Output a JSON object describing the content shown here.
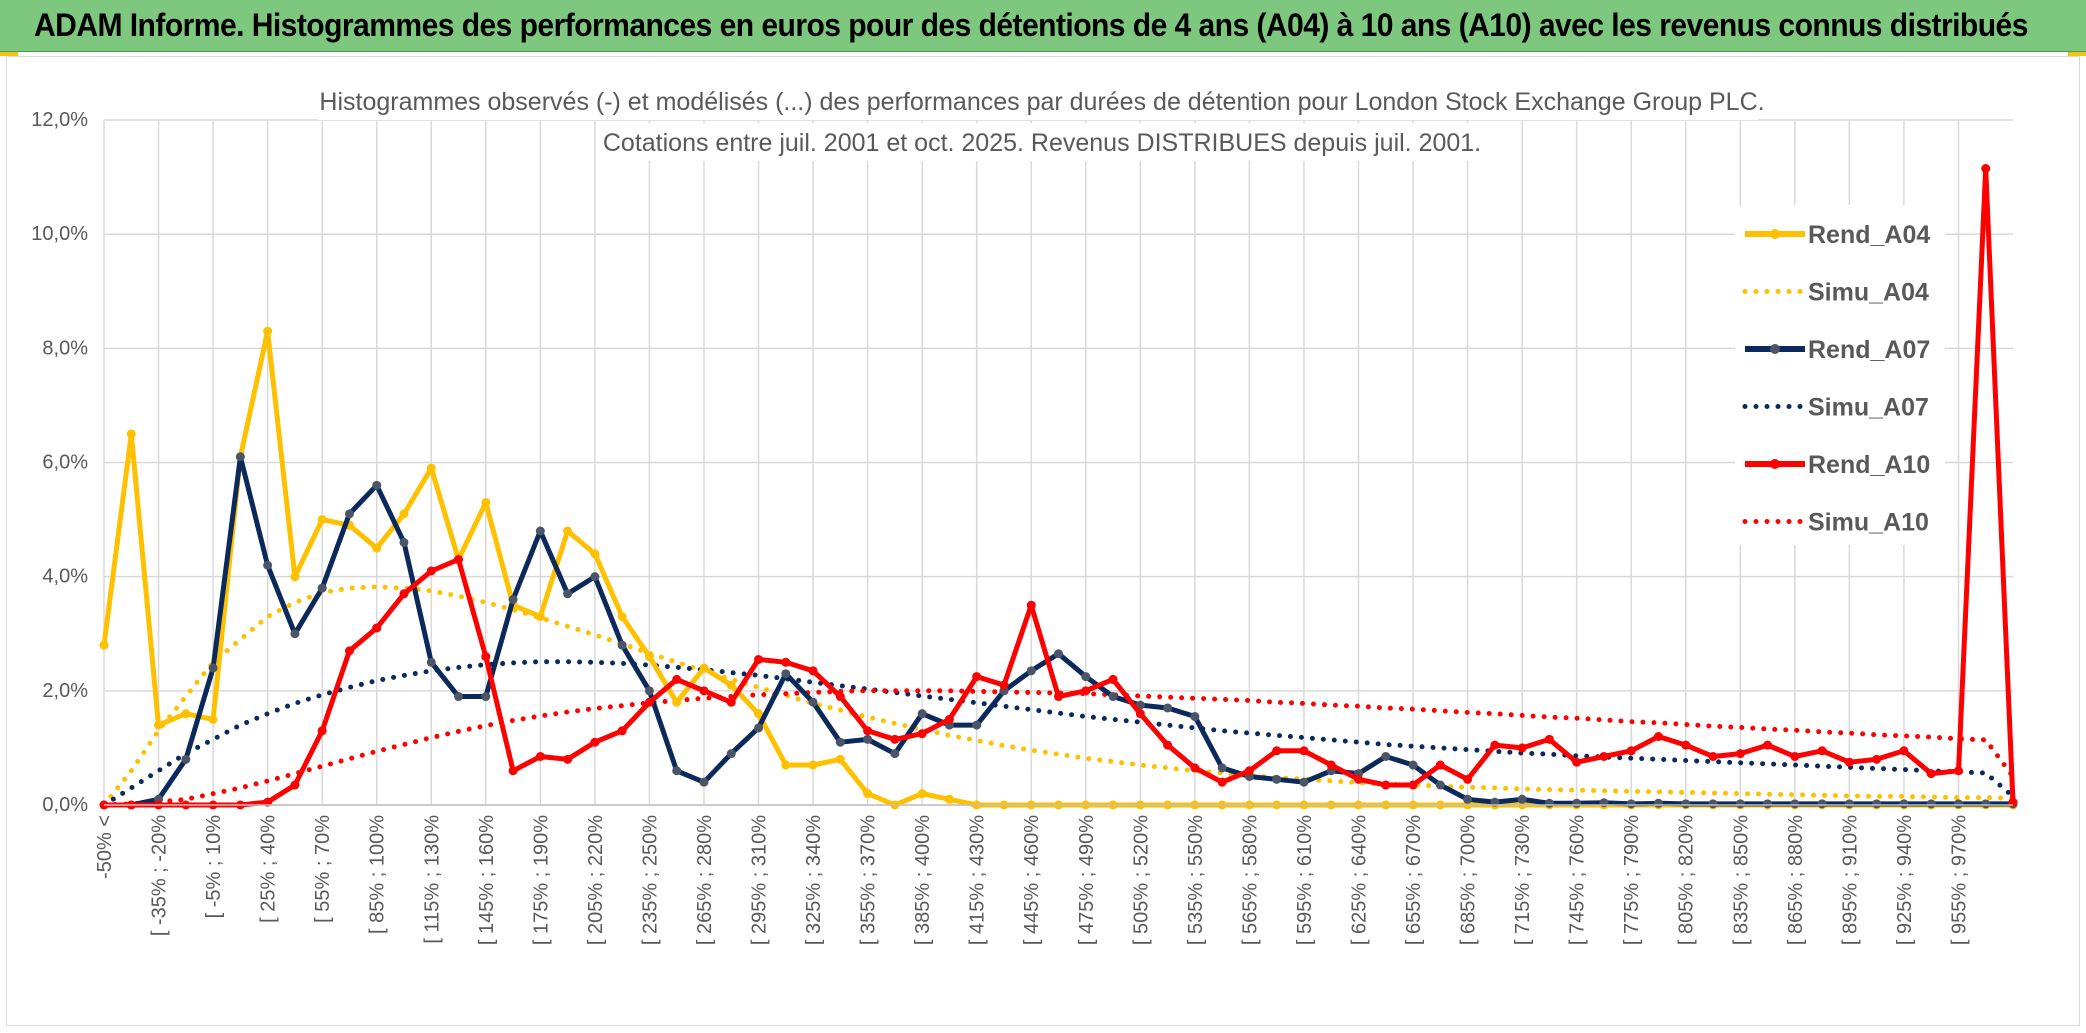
{
  "banner": {
    "title": "ADAM Informe. Histogrammes des performances en euros pour des détentions de 4 ans (A04) à 10 ans (A10) avec les revenus connus distribués"
  },
  "colors": {
    "banner_bg": "#7dc87e",
    "A04": "#ffc000",
    "A07": "#0b2a5b",
    "A10": "#ff0000",
    "grid": "#d9d9d9"
  },
  "chart_data": {
    "type": "line",
    "title": "Histogrammes observés (-) et modélisés (...) des performances par durées de détention pour London Stock Exchange Group PLC.",
    "subtitle": "Cotations entre juil. 2001 et oct. 2025. Revenus DISTRIBUES depuis juil. 2001.",
    "ylim": [
      0,
      12
    ],
    "yticks": [
      "0,0%",
      "2,0%",
      "4,0%",
      "6,0%",
      "8,0%",
      "10,0%",
      "12,0%"
    ],
    "n_points": 71,
    "xtick_labels": [
      "-50% <",
      "[ -35% ; -20%",
      "[ -5% ; 10%",
      "[ 25% ; 40%",
      "[ 55% ; 70%",
      "[ 85% ; 100%",
      "[ 115% ; 130%",
      "[ 145% ; 160%",
      "[ 175% ; 190%",
      "[ 205% ; 220%",
      "[ 235% ; 250%",
      "[ 265% ; 280%",
      "[ 295% ; 310%",
      "[ 325% ; 340%",
      "[ 355% ; 370%",
      "[ 385% ; 400%",
      "[ 415% ; 430%",
      "[ 445% ; 460%",
      "[ 475% ; 490%",
      "[ 505% ; 520%",
      "[ 535% ; 550%",
      "[ 565% ; 580%",
      "[ 595% ; 610%",
      "[ 625% ; 640%",
      "[ 655% ; 670%",
      "[ 685% ; 700%",
      "[ 715% ; 730%",
      "[ 745% ; 760%",
      "[ 775% ; 790%",
      "[ 805% ; 820%",
      "[ 835% ; 850%",
      "[ 865% ; 880%",
      "[ 895% ; 910%",
      "[ 925% ; 940%",
      "[ 955% ; 970%"
    ],
    "xtick_indices": [
      0,
      2,
      4,
      6,
      8,
      10,
      12,
      14,
      16,
      18,
      20,
      22,
      24,
      26,
      28,
      30,
      32,
      34,
      36,
      38,
      40,
      42,
      44,
      46,
      48,
      50,
      52,
      54,
      56,
      58,
      60,
      62,
      64,
      66,
      68
    ],
    "legend": [
      "Rend_A04",
      "Simu_A04",
      "Rend_A07",
      "Simu_A07",
      "Rend_A10",
      "Simu_A10"
    ],
    "series": [
      {
        "name": "Rend_A04",
        "style": "solid",
        "color": "#ffc000",
        "values": [
          2.8,
          6.5,
          1.4,
          1.6,
          1.5,
          6.1,
          8.3,
          4.0,
          5.0,
          4.9,
          4.5,
          5.1,
          5.9,
          4.3,
          5.3,
          3.5,
          3.3,
          4.8,
          4.4,
          3.3,
          2.6,
          1.8,
          2.4,
          2.1,
          1.6,
          0.7,
          0.7,
          0.8,
          0.2,
          0.0,
          0.2,
          0.1,
          0.0,
          0.0,
          0.0,
          0.0,
          0.0,
          0.0,
          0.0,
          0.0,
          0.0,
          0.0,
          0.0,
          0.0,
          0.0,
          0.0,
          0.0,
          0.0,
          0.0,
          0.0,
          0.0,
          0.0,
          0.0,
          0.0,
          0.0,
          0.0,
          0.0,
          0.0,
          0.0,
          0.0,
          0.0,
          0.0,
          0.0,
          0.0,
          0.0,
          0.0,
          0.0,
          0.0,
          0.0,
          0.0,
          0.0
        ]
      },
      {
        "name": "Simu_A04",
        "style": "dotted",
        "color": "#ffc000",
        "values": [
          0.0,
          0.6,
          1.3,
          1.9,
          2.5,
          2.9,
          3.3,
          3.55,
          3.72,
          3.8,
          3.82,
          3.8,
          3.75,
          3.66,
          3.55,
          3.42,
          3.28,
          3.13,
          2.98,
          2.82,
          2.66,
          2.5,
          2.35,
          2.2,
          2.06,
          1.92,
          1.78,
          1.66,
          1.54,
          1.43,
          1.32,
          1.22,
          1.13,
          1.04,
          0.96,
          0.89,
          0.82,
          0.76,
          0.7,
          0.65,
          0.6,
          0.56,
          0.52,
          0.48,
          0.45,
          0.42,
          0.39,
          0.37,
          0.35,
          0.33,
          0.31,
          0.3,
          0.28,
          0.27,
          0.26,
          0.25,
          0.24,
          0.23,
          0.22,
          0.21,
          0.2,
          0.19,
          0.18,
          0.17,
          0.16,
          0.15,
          0.15,
          0.14,
          0.13,
          0.13,
          0.12
        ]
      },
      {
        "name": "Rend_A07",
        "style": "solid",
        "color": "#0b2a5b",
        "values": [
          0.0,
          0.0,
          0.1,
          0.8,
          2.4,
          6.1,
          4.2,
          3.0,
          3.8,
          5.1,
          5.6,
          4.6,
          2.5,
          1.9,
          1.9,
          3.6,
          4.8,
          3.7,
          4.0,
          2.8,
          2.0,
          0.6,
          0.4,
          0.9,
          1.35,
          2.3,
          1.8,
          1.1,
          1.15,
          0.9,
          1.6,
          1.4,
          1.4,
          2.0,
          2.35,
          2.65,
          2.25,
          1.9,
          1.75,
          1.7,
          1.55,
          0.65,
          0.5,
          0.45,
          0.4,
          0.6,
          0.55,
          0.85,
          0.7,
          0.35,
          0.1,
          0.05,
          0.1,
          0.03,
          0.03,
          0.04,
          0.02,
          0.03,
          0.02,
          0.02,
          0.02,
          0.02,
          0.02,
          0.02,
          0.02,
          0.02,
          0.02,
          0.02,
          0.02,
          0.02,
          0.02
        ]
      },
      {
        "name": "Simu_A07",
        "style": "dotted",
        "color": "#0b2a5b",
        "values": [
          0.0,
          0.3,
          0.6,
          0.9,
          1.15,
          1.4,
          1.6,
          1.78,
          1.93,
          2.06,
          2.18,
          2.27,
          2.35,
          2.41,
          2.46,
          2.49,
          2.51,
          2.51,
          2.5,
          2.48,
          2.45,
          2.41,
          2.37,
          2.32,
          2.27,
          2.21,
          2.15,
          2.09,
          2.03,
          1.97,
          1.91,
          1.85,
          1.79,
          1.73,
          1.67,
          1.61,
          1.55,
          1.5,
          1.45,
          1.4,
          1.35,
          1.3,
          1.26,
          1.22,
          1.18,
          1.14,
          1.1,
          1.06,
          1.03,
          1.0,
          0.97,
          0.94,
          0.91,
          0.89,
          0.86,
          0.84,
          0.82,
          0.8,
          0.78,
          0.76,
          0.74,
          0.72,
          0.7,
          0.68,
          0.66,
          0.64,
          0.62,
          0.6,
          0.58,
          0.56,
          0.15
        ]
      },
      {
        "name": "Rend_A10",
        "style": "solid",
        "color": "#ff0000",
        "values": [
          0.0,
          0.0,
          0.0,
          0.0,
          0.0,
          0.0,
          0.05,
          0.35,
          1.3,
          2.7,
          3.1,
          3.7,
          4.1,
          4.3,
          2.6,
          0.6,
          0.85,
          0.8,
          1.1,
          1.3,
          1.8,
          2.2,
          2.0,
          1.8,
          2.55,
          2.5,
          2.35,
          1.9,
          1.3,
          1.15,
          1.25,
          1.5,
          2.25,
          2.1,
          3.5,
          1.9,
          2.0,
          2.2,
          1.6,
          1.05,
          0.65,
          0.4,
          0.6,
          0.95,
          0.95,
          0.7,
          0.45,
          0.35,
          0.35,
          0.7,
          0.45,
          1.05,
          1.0,
          1.15,
          0.75,
          0.85,
          0.95,
          1.2,
          1.05,
          0.85,
          0.9,
          1.05,
          0.85,
          0.95,
          0.75,
          0.8,
          0.95,
          0.55,
          0.6,
          11.15,
          0.05
        ]
      },
      {
        "name": "Simu_A10",
        "style": "dotted",
        "color": "#ff0000",
        "values": [
          0.0,
          0.02,
          0.05,
          0.1,
          0.2,
          0.3,
          0.42,
          0.55,
          0.68,
          0.81,
          0.94,
          1.06,
          1.18,
          1.29,
          1.39,
          1.48,
          1.56,
          1.63,
          1.69,
          1.74,
          1.79,
          1.83,
          1.87,
          1.9,
          1.93,
          1.95,
          1.97,
          1.99,
          2.0,
          2.0,
          2.0,
          2.0,
          1.99,
          1.98,
          1.97,
          1.96,
          1.95,
          1.93,
          1.91,
          1.89,
          1.87,
          1.85,
          1.83,
          1.8,
          1.78,
          1.75,
          1.73,
          1.7,
          1.68,
          1.65,
          1.62,
          1.6,
          1.57,
          1.54,
          1.52,
          1.49,
          1.46,
          1.44,
          1.41,
          1.38,
          1.36,
          1.33,
          1.31,
          1.28,
          1.26,
          1.23,
          1.21,
          1.19,
          1.16,
          1.14,
          0.5
        ]
      }
    ]
  }
}
